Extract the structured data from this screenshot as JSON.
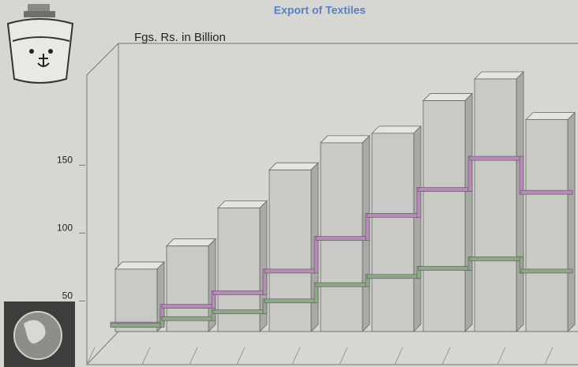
{
  "chart_data": {
    "type": "bar",
    "title": "Export of Textiles",
    "y_label": "Fgs. Rs. in Billion",
    "categories": [
      null,
      null,
      null,
      null,
      null,
      null,
      null,
      null,
      null
    ],
    "series": [
      {
        "type": "bar",
        "color": "#c9c9c6",
        "values": [
          70,
          87,
          115,
          143,
          163,
          170,
          194,
          210,
          180
        ]
      },
      {
        "type": "step",
        "color": "#b88ab8",
        "values": [
          31,
          44,
          54,
          70,
          94,
          111,
          130,
          153,
          128
        ]
      },
      {
        "type": "step",
        "color": "#8fa88a",
        "values": [
          30,
          35,
          40,
          48,
          60,
          66,
          72,
          79,
          70
        ]
      }
    ],
    "ylim": [
      20,
      235
    ],
    "yticks": [
      50,
      100,
      150
    ]
  }
}
